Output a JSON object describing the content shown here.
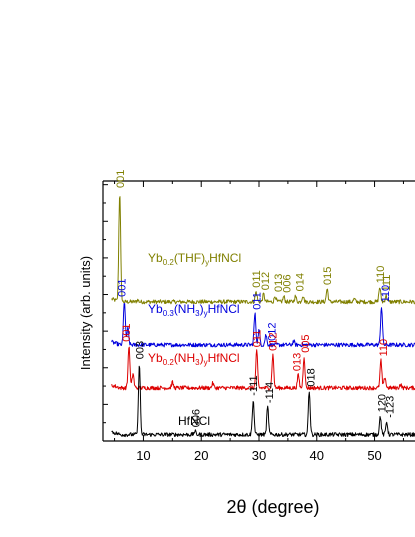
{
  "chart_data": {
    "type": "line",
    "title": "",
    "xlabel": "2θ (degree)",
    "ylabel": "Intensity (arb. units)",
    "xlim": [
      3,
      57
    ],
    "x_ticks": [
      10,
      20,
      30,
      40,
      50
    ],
    "y_ticks_visible": false,
    "grid": false,
    "legend": "none (series labelled inline)",
    "series": [
      {
        "name_parts": [
          "Yb",
          "0.2",
          "(THF)",
          "y",
          "HfNCl"
        ],
        "color": "#808000",
        "offset": 7.6,
        "scale": 1.0,
        "points": [
          [
            5.9,
            6.0
          ],
          [
            9.0,
            0.1
          ],
          [
            29.5,
            0.55
          ],
          [
            30.8,
            0.42
          ],
          [
            32.8,
            0.32
          ],
          [
            34.3,
            0.28
          ],
          [
            36.3,
            0.3
          ],
          [
            37.6,
            0.35
          ],
          [
            41.8,
            0.7
          ],
          [
            46.5,
            0.15
          ],
          [
            50.9,
            0.8
          ],
          [
            52.0,
            0.35
          ]
        ],
        "peak_labels": [
          {
            "x": 5.9,
            "text": "001"
          },
          {
            "x": 29.5,
            "text": "011"
          },
          {
            "x": 31.0,
            "text": "012"
          },
          {
            "x": 33.3,
            "text": "013"
          },
          {
            "x": 34.8,
            "text": "006"
          },
          {
            "x": 37.0,
            "text": "014"
          },
          {
            "x": 41.8,
            "text": "015"
          },
          {
            "x": 50.9,
            "text": "110"
          },
          {
            "x": 52.0,
            "text": "111"
          }
        ]
      },
      {
        "name_parts": [
          "Yb",
          "0.3",
          "(NH",
          "3",
          ")",
          "y",
          "HfNCl"
        ],
        "color": "#0000dd",
        "offset": 5.25,
        "scale": 1.0,
        "points": [
          [
            6.7,
            2.4
          ],
          [
            7.3,
            0.9
          ],
          [
            29.3,
            1.7
          ],
          [
            30.0,
            0.8
          ],
          [
            31.2,
            0.55
          ],
          [
            36.0,
            0.2
          ],
          [
            51.2,
            2.1
          ]
        ],
        "peak_labels": [
          {
            "x": 6.2,
            "text": "001"
          },
          {
            "x": 29.6,
            "text": "011"
          },
          {
            "x": 32.2,
            "text": "012"
          },
          {
            "x": 51.8,
            "text": "110"
          }
        ]
      },
      {
        "name_parts": [
          "Yb",
          "0.2",
          "(NH",
          "3",
          ")",
          "y",
          "HfNCl"
        ],
        "color": "#dd0000",
        "offset": 2.9,
        "scale": 1.0,
        "points": [
          [
            7.5,
            2.3
          ],
          [
            8.2,
            0.8
          ],
          [
            15.0,
            0.3
          ],
          [
            22.0,
            0.25
          ],
          [
            29.6,
            2.0
          ],
          [
            32.4,
            1.8
          ],
          [
            36.8,
            0.7
          ],
          [
            37.8,
            1.7
          ],
          [
            51.1,
            1.5
          ],
          [
            51.8,
            0.6
          ],
          [
            54.5,
            0.2
          ]
        ],
        "peak_labels": [
          {
            "x": 7.0,
            "text": "001"
          },
          {
            "x": 29.6,
            "text": "011"
          },
          {
            "x": 32.3,
            "text": "012"
          },
          {
            "x": 36.5,
            "text": "013"
          },
          {
            "x": 38.0,
            "text": "005"
          },
          {
            "x": 51.5,
            "text": "110"
          }
        ]
      },
      {
        "name_parts": [
          "HfNCl"
        ],
        "color": "#000000",
        "offset": 0.35,
        "scale": 1.0,
        "points": [
          [
            9.3,
            3.9
          ],
          [
            18.9,
            0.18
          ],
          [
            29.0,
            1.9
          ],
          [
            31.5,
            1.5
          ],
          [
            38.7,
            2.4
          ],
          [
            51.0,
            1.0
          ],
          [
            52.1,
            0.7
          ]
        ],
        "peak_labels": [
          {
            "x": 9.3,
            "text": "003"
          },
          {
            "x": 19.0,
            "text": "006"
          },
          {
            "x": 29.0,
            "text": "-111"
          },
          {
            "x": 31.7,
            "text": "-114"
          },
          {
            "x": 38.9,
            "text": "018"
          },
          {
            "x": 51.2,
            "text": "120"
          },
          {
            "x": 52.6,
            "text": "-123"
          }
        ]
      }
    ]
  }
}
